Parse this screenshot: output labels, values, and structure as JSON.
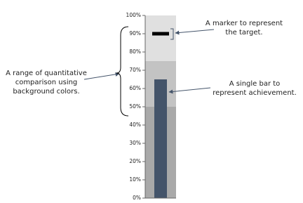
{
  "chart_data": {
    "type": "bullet",
    "value": 65,
    "target": 90,
    "bar_color": "#44546a",
    "target_color": "#000000",
    "ranges": [
      50,
      75,
      100
    ],
    "range_colors": [
      "#a9a9a9",
      "#c3c3c3",
      "#e0e0e0"
    ],
    "ylim": [
      0,
      100
    ],
    "yticks": [
      {
        "value": 0,
        "label": "0%"
      },
      {
        "value": 10,
        "label": "10%"
      },
      {
        "value": 20,
        "label": "20%"
      },
      {
        "value": 30,
        "label": "30%"
      },
      {
        "value": 40,
        "label": "40%"
      },
      {
        "value": 50,
        "label": "50%"
      },
      {
        "value": 60,
        "label": "60%"
      },
      {
        "value": 70,
        "label": "70%"
      },
      {
        "value": 80,
        "label": "80%"
      },
      {
        "value": 90,
        "label": "90%"
      },
      {
        "value": 100,
        "label": "100%"
      }
    ],
    "annotations": [
      {
        "lines": [
          "A marker to represent",
          "the target."
        ]
      },
      {
        "lines": [
          "A range of quantitative",
          "comparison using",
          "background colors."
        ]
      },
      {
        "lines": [
          "A single bar  to",
          "represent achievement."
        ]
      }
    ]
  }
}
